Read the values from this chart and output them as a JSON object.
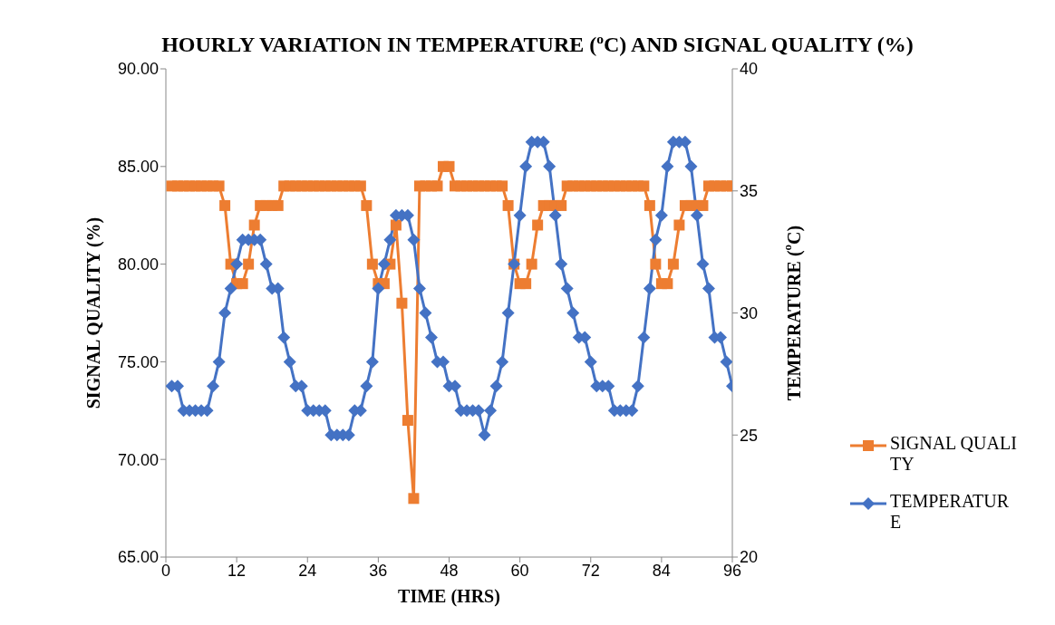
{
  "chart_data": {
    "type": "line",
    "title": "HOURLY VARIATION IN TEMPERATURE ($^{o}$C) AND SIGNAL QUALITY (%)",
    "xlabel": "TIME (HRS)",
    "ylabel": "SIGNAL QUALITY (%)",
    "y2label": "TEMPERATURE ($^{o}$C)",
    "x": [
      1,
      2,
      3,
      4,
      5,
      6,
      7,
      8,
      9,
      10,
      11,
      12,
      13,
      14,
      15,
      16,
      17,
      18,
      19,
      20,
      21,
      22,
      23,
      24,
      25,
      26,
      27,
      28,
      29,
      30,
      31,
      32,
      33,
      34,
      35,
      36,
      37,
      38,
      39,
      40,
      41,
      42,
      43,
      44,
      45,
      46,
      47,
      48,
      49,
      50,
      51,
      52,
      53,
      54,
      55,
      56,
      57,
      58,
      59,
      60,
      61,
      62,
      63,
      64,
      65,
      66,
      67,
      68,
      69,
      70,
      71,
      72,
      73,
      74,
      75,
      76,
      77,
      78,
      79,
      80,
      81,
      82,
      83,
      84,
      85,
      86,
      87,
      88,
      89,
      90,
      91,
      92,
      93,
      94,
      95,
      96
    ],
    "series": [
      {
        "name": "SIGNAL QUALITY",
        "color": "#ed7d31",
        "marker": "square",
        "values": [
          84,
          84,
          84,
          84,
          84,
          84,
          84,
          84,
          84,
          83,
          80,
          79,
          79,
          80,
          82,
          83,
          83,
          83,
          83,
          84,
          84,
          84,
          84,
          84,
          84,
          84,
          84,
          84,
          84,
          84,
          84,
          84,
          84,
          83,
          80,
          79,
          79,
          80,
          82,
          78,
          72,
          68,
          84,
          84,
          84,
          84,
          85,
          85,
          84,
          84,
          84,
          84,
          84,
          84,
          84,
          84,
          84,
          83,
          80,
          79,
          79,
          80,
          82,
          83,
          83,
          83,
          83,
          84,
          84,
          84,
          84,
          84,
          84,
          84,
          84,
          84,
          84,
          84,
          84,
          84,
          84,
          83,
          80,
          79,
          79,
          80,
          82,
          83,
          83,
          83,
          83,
          84,
          84,
          84,
          84,
          84
        ]
      },
      {
        "name": "TEMPERATURE",
        "color": "#4472c4",
        "marker": "diamond",
        "axis": "y2",
        "values": [
          27,
          27,
          26,
          26,
          26,
          26,
          26,
          27,
          28,
          30,
          31,
          32,
          33,
          33,
          33,
          33,
          32,
          31,
          31,
          29,
          28,
          27,
          27,
          26,
          26,
          26,
          26,
          25,
          25,
          25,
          25,
          26,
          26,
          27,
          28,
          31,
          32,
          33,
          34,
          34,
          34,
          33,
          31,
          30,
          29,
          28,
          28,
          27,
          27,
          26,
          26,
          26,
          26,
          25,
          26,
          27,
          28,
          30,
          32,
          34,
          36,
          37,
          37,
          37,
          36,
          34,
          32,
          31,
          30,
          29,
          29,
          28,
          27,
          27,
          27,
          26,
          26,
          26,
          26,
          27,
          29,
          31,
          33,
          34,
          36,
          37,
          37,
          37,
          36,
          34,
          32,
          31,
          29,
          29,
          28,
          27
        ]
      }
    ],
    "xlim": [
      0,
      96
    ],
    "xticks": [
      0,
      12,
      24,
      36,
      48,
      60,
      72,
      84,
      96
    ],
    "ylim": [
      65,
      90
    ],
    "yticks": [
      {
        "value": 65,
        "label": "65.00"
      },
      {
        "value": 70,
        "label": "70.00"
      },
      {
        "value": 75,
        "label": "75.00"
      },
      {
        "value": 80,
        "label": "80.00"
      },
      {
        "value": 85,
        "label": "85.00"
      },
      {
        "value": 90,
        "label": "90.00"
      }
    ],
    "y2lim": [
      20,
      40
    ],
    "y2ticks": [
      20,
      25,
      30,
      35,
      40
    ],
    "grid": false,
    "legend": "right"
  }
}
